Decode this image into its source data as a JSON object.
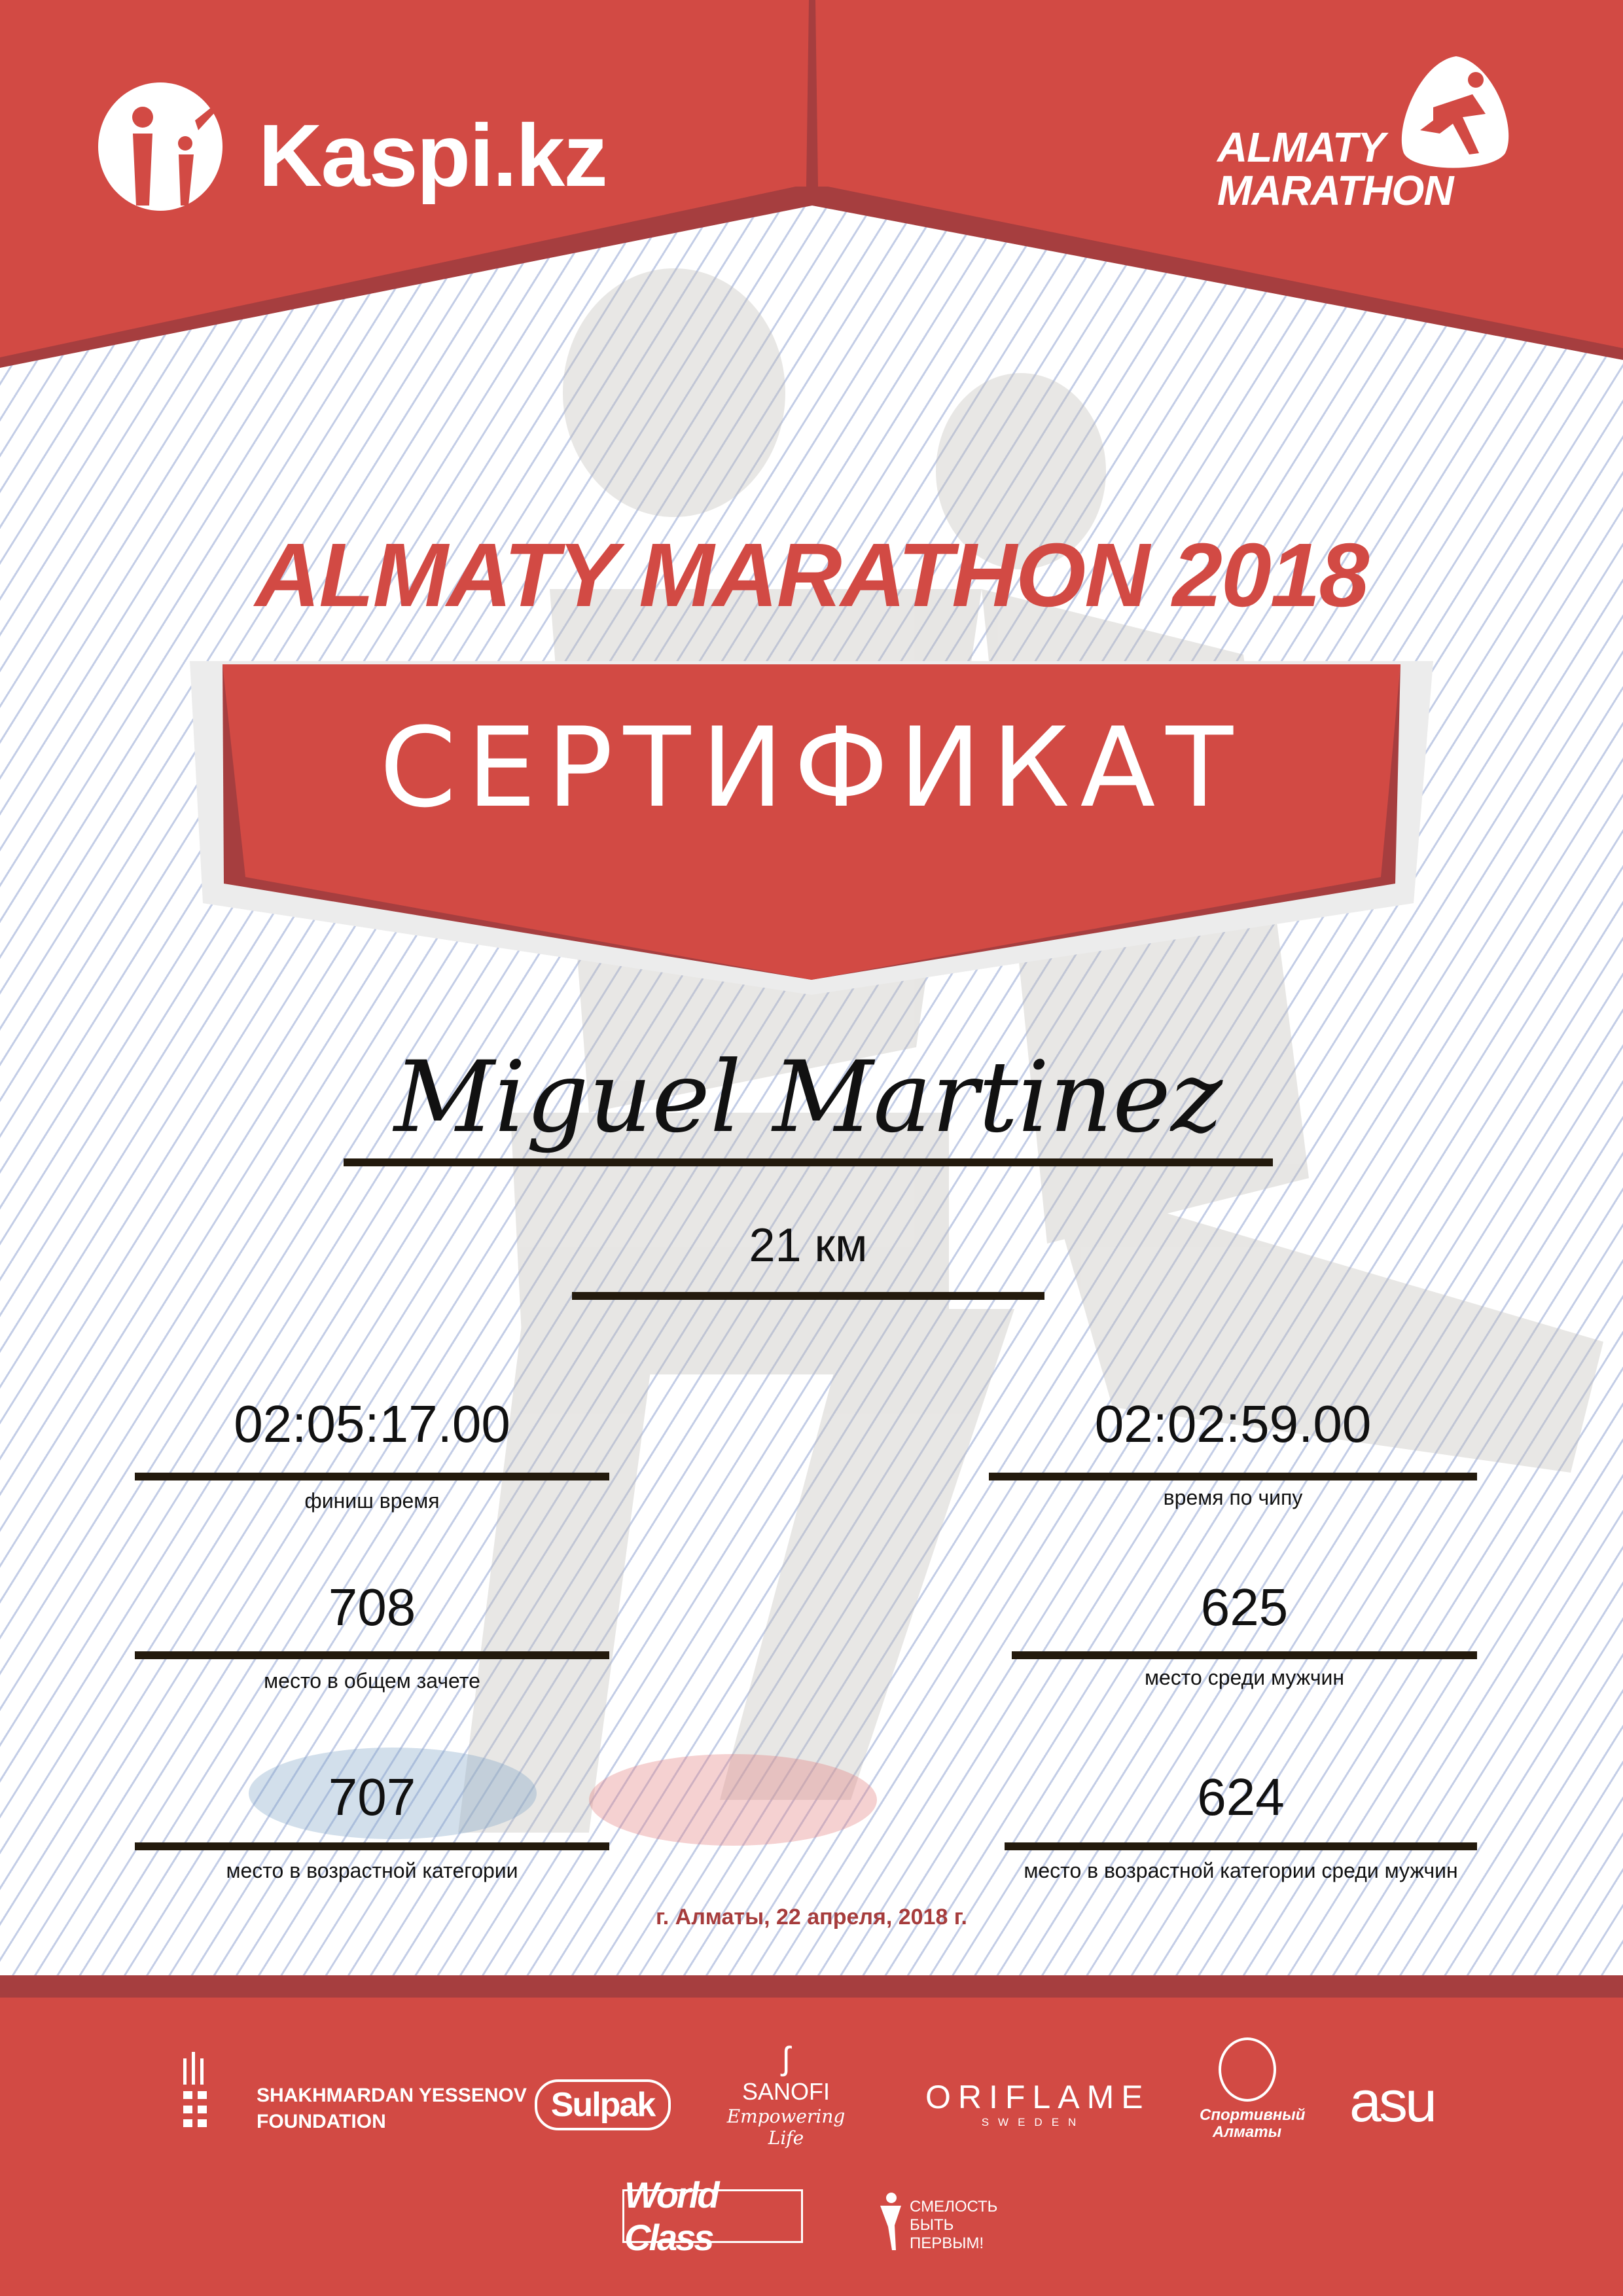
{
  "colors": {
    "brand_red": "#d24a44",
    "dark_red": "#a63e3f",
    "line": "#231a0d",
    "date": "#a63c3c"
  },
  "header": {
    "kaspi_logo": {
      "text": "Kaspi.kz",
      "icon": "kaspi-family-icon"
    },
    "almaty_marathon_logo": {
      "line1": "ALMATY",
      "line2": "MARATHON",
      "icon": "runner-icon"
    }
  },
  "title": "ALMATY MARATHON 2018",
  "certificate_label": "СЕРТИФИКАТ",
  "participant": {
    "name": "Miguel Martinez",
    "distance": "21 км"
  },
  "results": {
    "left": [
      {
        "value": "02:05:17.00",
        "label": "финиш время"
      },
      {
        "value": "708",
        "label": "место в общем зачете"
      },
      {
        "value": "707",
        "label": "место в возрастной категории"
      }
    ],
    "right": [
      {
        "value": "02:02:59.00",
        "label": "время по чипу"
      },
      {
        "value": "625",
        "label": "место среди мужчин"
      },
      {
        "value": "624",
        "label": "место в возрастной категории среди мужчин"
      }
    ]
  },
  "date_place": "г. Алматы, 22 апреля, 2018 г.",
  "sponsors": {
    "yessenov": {
      "line1": "SHAKHMARDAN YESSENOV",
      "line2": "FOUNDATION"
    },
    "sulpak": "Sulpak",
    "sanofi": {
      "name": "SANOFI",
      "tagline": "Empowering Life"
    },
    "oriflame": {
      "name": "ORIFLAME",
      "sub": "SWEDEN"
    },
    "sport_almaty": "Спортивный Алматы",
    "asu": "asu",
    "world_class": "World Class",
    "smelost": {
      "line1": "СМЕЛОСТЬ",
      "line2": "БЫТЬ",
      "line3": "ПЕРВЫМ!"
    }
  }
}
